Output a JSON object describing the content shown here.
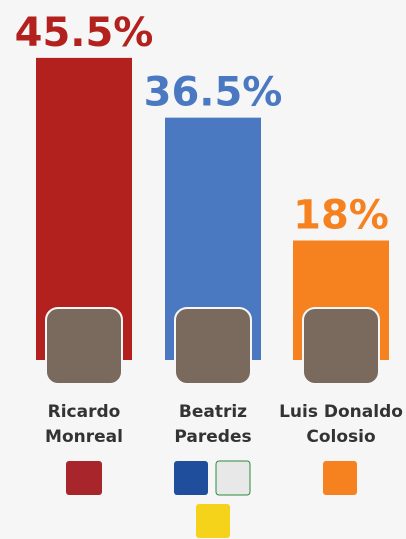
{
  "chart_data": {
    "type": "bar",
    "categories": [
      "Ricardo Monreal",
      "Beatriz Paredes",
      "Luis Donaldo Colosio"
    ],
    "values": [
      45.5,
      36.5,
      18
    ],
    "value_labels": [
      "45.5%",
      "36.5%",
      "18%"
    ],
    "colors": [
      "#b3211f",
      "#4a79c1",
      "#f5821f"
    ]
  }
}
